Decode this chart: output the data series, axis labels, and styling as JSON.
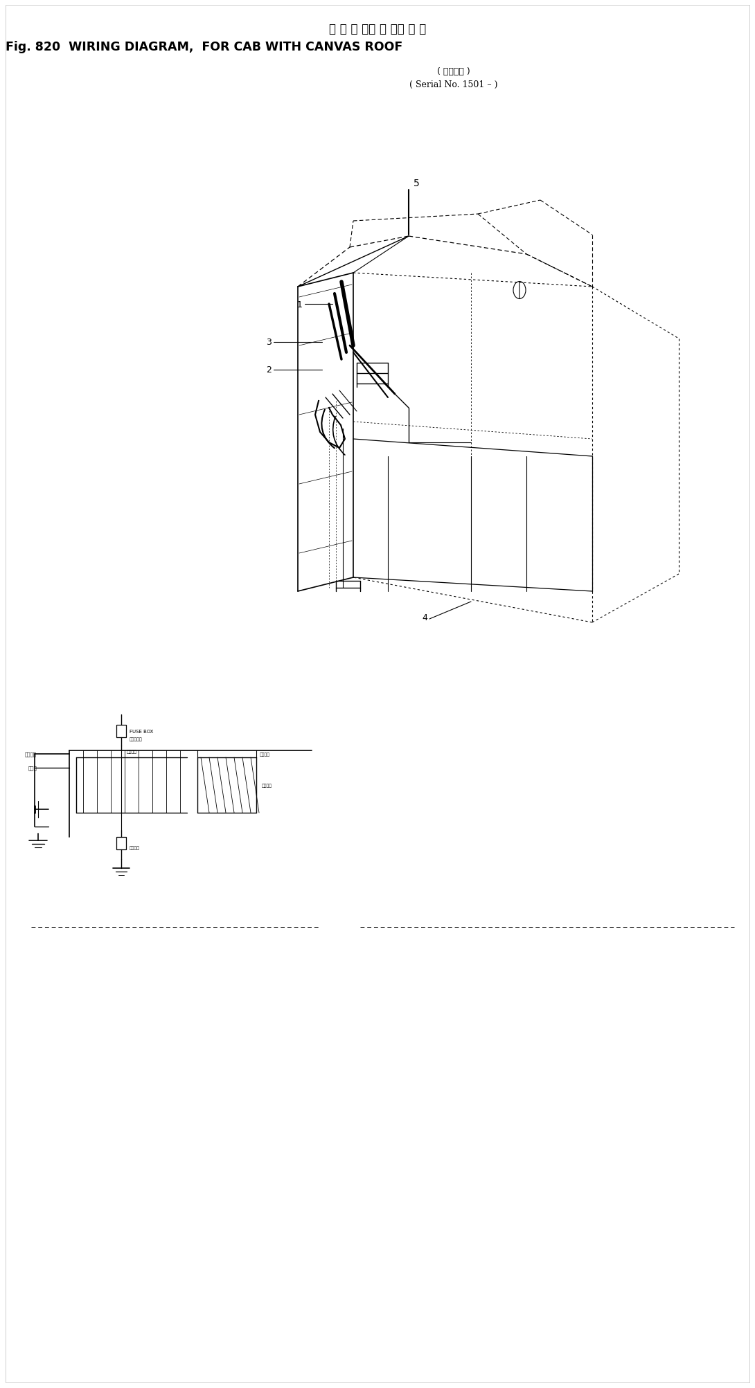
{
  "title_japanese": "配 線 図 　灌 街 　布 室 用",
  "title_english": "Fig. 820  WIRING DIAGRAM,  FOR CAB WITH CANVAS ROOF",
  "serial_japanese": "適用号機",
  "serial_english": "Serial No. 1501 –",
  "bg_color": "#ffffff",
  "text_color": "#000000",
  "fig_width": 10.9,
  "fig_height": 20.06
}
